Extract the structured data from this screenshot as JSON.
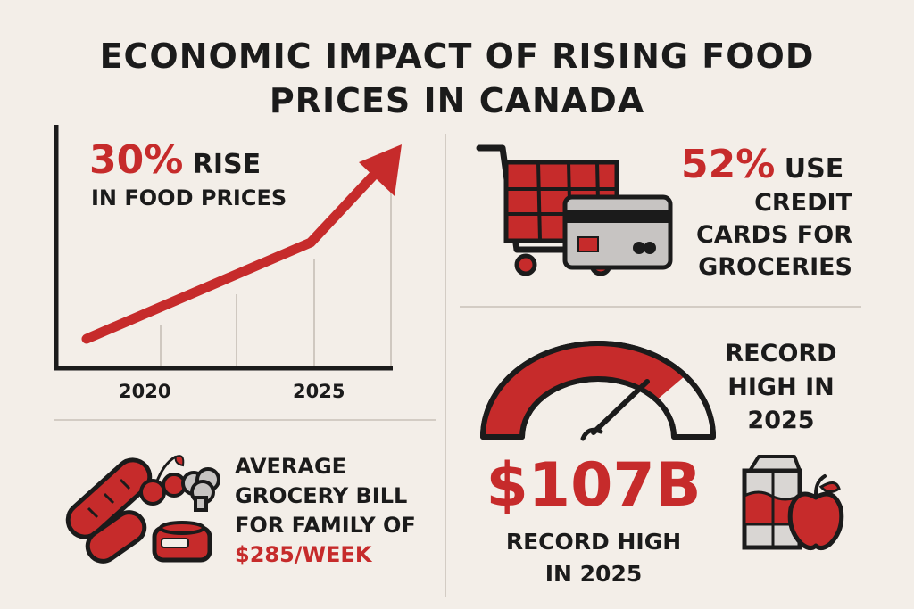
{
  "title": "ECONOMIC IMPACT OF RISING FOOD PRICES IN CANADA",
  "colors": {
    "accent": "#c62b2b",
    "background": "#f3eee8",
    "text": "#1b1b1b"
  },
  "price_rise": {
    "value": "30%",
    "label_line1": "RISE",
    "label_line2": "IN FOOD PRICES",
    "x_labels": [
      "2020",
      "2025"
    ]
  },
  "credit": {
    "value": "52%",
    "label_line1": "USE",
    "label_line2": "CREDIT",
    "label_line3": "CARDS FOR",
    "label_line4": "GROCERIES"
  },
  "grocery_bill": {
    "line1": "AVERAGE",
    "line2": "GROCERY BILL",
    "line3": "FOR FAMILY OF",
    "amount": "$285/WEEK"
  },
  "debt": {
    "side_line1": "RECORD",
    "side_line2": "HIGH IN",
    "side_line3": "2025",
    "value": "$107B",
    "caption_line1": "RECORD HIGH",
    "caption_line2": "IN 2025",
    "gauge_level": 0.78
  },
  "icons": [
    "trend-arrow-icon",
    "shopping-cart-icon",
    "credit-card-icon",
    "bread-icon",
    "cherries-icon",
    "broccoli-icon",
    "sausage-icon",
    "canned-food-icon",
    "gauge-icon",
    "milk-carton-icon",
    "apple-icon"
  ]
}
